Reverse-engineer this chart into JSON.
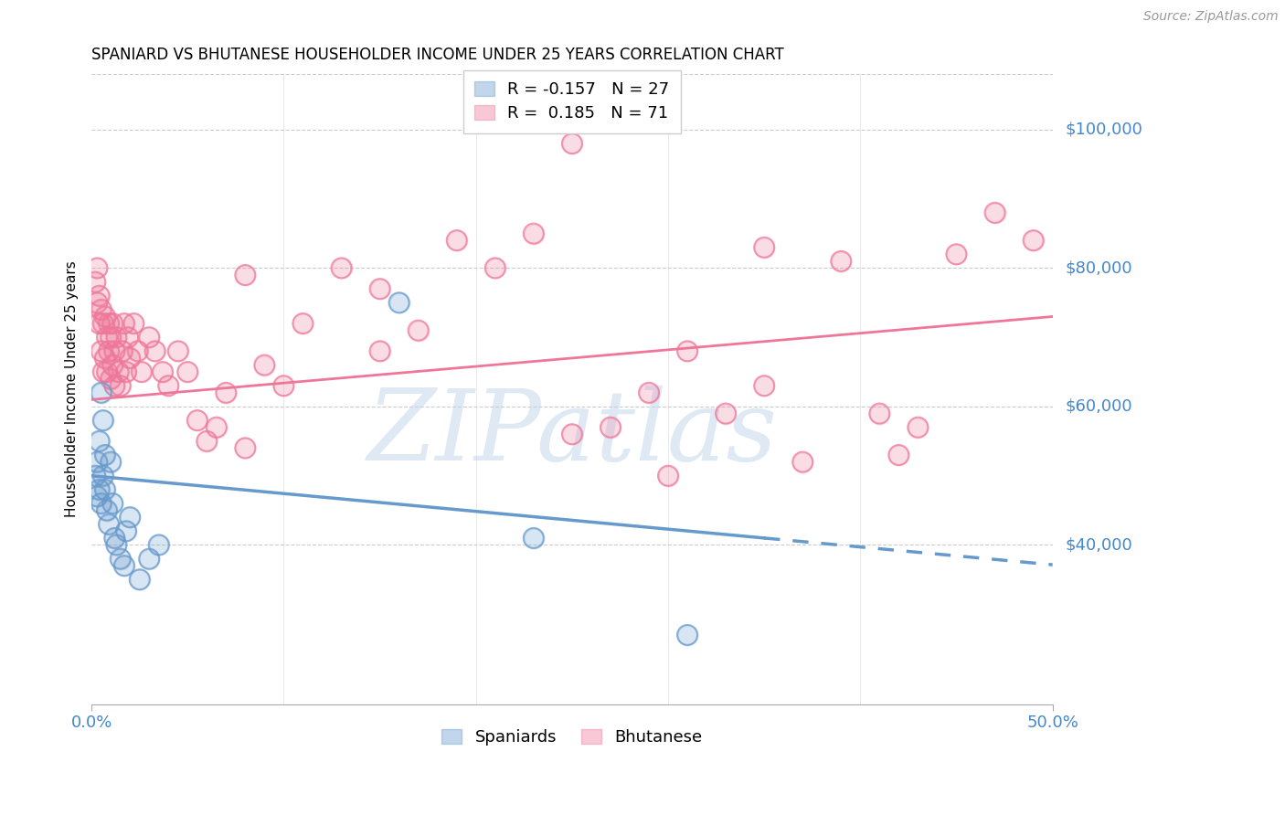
{
  "title": "SPANIARD VS BHUTANESE HOUSEHOLDER INCOME UNDER 25 YEARS CORRELATION CHART",
  "source": "Source: ZipAtlas.com",
  "ylabel": "Householder Income Under 25 years",
  "ytick_labels": [
    "$100,000",
    "$80,000",
    "$60,000",
    "$40,000"
  ],
  "ytick_values": [
    100000,
    80000,
    60000,
    40000
  ],
  "ylim": [
    17000,
    108000
  ],
  "xlim": [
    0.0,
    0.5
  ],
  "legend_blue_r": "-0.157",
  "legend_blue_n": "27",
  "legend_pink_r": "0.185",
  "legend_pink_n": "71",
  "blue_color": "#6699CC",
  "pink_color": "#EE7799",
  "watermark": "ZIPatlas",
  "spaniard_x": [
    0.002,
    0.003,
    0.003,
    0.004,
    0.004,
    0.005,
    0.005,
    0.006,
    0.006,
    0.007,
    0.007,
    0.008,
    0.009,
    0.01,
    0.011,
    0.012,
    0.013,
    0.015,
    0.017,
    0.018,
    0.02,
    0.025,
    0.03,
    0.035,
    0.16,
    0.23,
    0.31
  ],
  "spaniard_y": [
    50000,
    47000,
    52000,
    48000,
    55000,
    46000,
    62000,
    50000,
    58000,
    48000,
    53000,
    45000,
    43000,
    52000,
    46000,
    41000,
    40000,
    38000,
    37000,
    42000,
    44000,
    35000,
    38000,
    40000,
    75000,
    41000,
    27000
  ],
  "bhutanese_x": [
    0.002,
    0.003,
    0.003,
    0.004,
    0.004,
    0.005,
    0.005,
    0.006,
    0.006,
    0.007,
    0.007,
    0.008,
    0.008,
    0.009,
    0.009,
    0.01,
    0.01,
    0.011,
    0.011,
    0.012,
    0.012,
    0.013,
    0.014,
    0.015,
    0.016,
    0.017,
    0.018,
    0.019,
    0.02,
    0.022,
    0.024,
    0.026,
    0.03,
    0.033,
    0.037,
    0.04,
    0.045,
    0.05,
    0.055,
    0.06,
    0.065,
    0.07,
    0.08,
    0.09,
    0.1,
    0.11,
    0.13,
    0.15,
    0.17,
    0.19,
    0.21,
    0.23,
    0.25,
    0.27,
    0.29,
    0.31,
    0.33,
    0.35,
    0.37,
    0.39,
    0.41,
    0.43,
    0.45,
    0.47,
    0.49,
    0.15,
    0.25,
    0.35,
    0.08,
    0.3,
    0.42
  ],
  "bhutanese_y": [
    78000,
    75000,
    80000,
    72000,
    76000,
    68000,
    74000,
    65000,
    72000,
    67000,
    73000,
    65000,
    70000,
    68000,
    72000,
    64000,
    70000,
    66000,
    72000,
    63000,
    68000,
    70000,
    65000,
    63000,
    68000,
    72000,
    65000,
    70000,
    67000,
    72000,
    68000,
    65000,
    70000,
    68000,
    65000,
    63000,
    68000,
    65000,
    58000,
    55000,
    57000,
    62000,
    79000,
    66000,
    63000,
    72000,
    80000,
    77000,
    71000,
    84000,
    80000,
    85000,
    98000,
    57000,
    62000,
    68000,
    59000,
    83000,
    52000,
    81000,
    59000,
    57000,
    82000,
    88000,
    84000,
    68000,
    56000,
    63000,
    54000,
    50000,
    53000
  ]
}
